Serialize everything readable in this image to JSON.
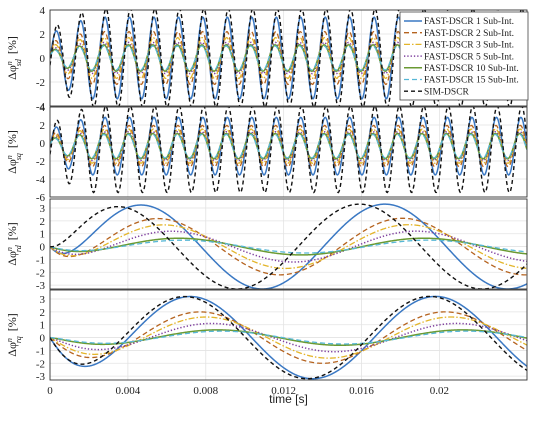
{
  "chart_data": {
    "type": "line",
    "xlabel": "time [s]",
    "x_range": [
      0,
      0.0245
    ],
    "x_ticks": [
      0,
      0.004,
      0.008,
      0.012,
      0.016,
      0.02
    ],
    "x_tick_labels": [
      "0",
      "0.004",
      "0.008",
      "0.012",
      "0.016",
      "0.02"
    ],
    "grid": true,
    "legend": {
      "placement": "top-right",
      "entries": [
        "FAST-DSCR 1 Sub-Int.",
        "FAST-DSCR 2 Sub-Int.",
        "FAST-DSCR 3 Sub-Int.",
        "FAST-DSCR 5 Sub-Int.",
        "FAST-DSCR 10 Sub-Int.",
        "FAST-DSCR 15 Sub-Int.",
        "SIM-DSCR"
      ]
    },
    "series_styles": [
      {
        "name": "FAST-DSCR 1 Sub-Int.",
        "color": "#3a78c3",
        "dash": "",
        "width": 1.5
      },
      {
        "name": "FAST-DSCR 2 Sub-Int.",
        "color": "#b5631f",
        "dash": "5,3",
        "width": 1.3
      },
      {
        "name": "FAST-DSCR 3 Sub-Int.",
        "color": "#e3b52a",
        "dash": "6,2,1.5,2",
        "width": 1.3
      },
      {
        "name": "FAST-DSCR 5 Sub-Int.",
        "color": "#7e3f9e",
        "dash": "1.3,2",
        "width": 1.5
      },
      {
        "name": "FAST-DSCR 10 Sub-Int.",
        "color": "#6a9a33",
        "dash": "",
        "width": 1.5
      },
      {
        "name": "FAST-DSCR 15 Sub-Int.",
        "color": "#57b7d6",
        "dash": "5,3",
        "width": 1.3
      },
      {
        "name": "SIM-DSCR",
        "color": "#111111",
        "dash": "4,3",
        "width": 1.4
      }
    ],
    "panels": [
      {
        "ylabel_main": "Δφ",
        "ylabel_sup": "n",
        "ylabel_sub": "sd",
        "ylabel_unit": "[%]",
        "ylim": [
          -4,
          4
        ],
        "yticks": [
          -4,
          -2,
          0,
          2,
          4
        ],
        "waveform": "fast",
        "cycles": 19.5,
        "amplitudes": [
          3.4,
          2.2,
          1.7,
          1.3,
          1.1,
          1.0,
          4.1
        ],
        "phase_shifts": [
          0,
          0.12,
          0.18,
          0.24,
          0.28,
          0.3,
          -0.25
        ]
      },
      {
        "ylabel_main": "Δφ",
        "ylabel_sup": "n",
        "ylabel_sub": "sq",
        "ylabel_unit": "[%]",
        "ylim": [
          -6,
          4
        ],
        "yticks": [
          -6,
          -4,
          -2,
          0,
          2,
          4
        ],
        "waveform": "fast",
        "cycles": 19.5,
        "offset": -0.7,
        "amplitudes": [
          3.2,
          2.3,
          1.9,
          1.6,
          1.4,
          1.3,
          4.8
        ],
        "phase_shifts": [
          0,
          0.12,
          0.18,
          0.24,
          0.28,
          0.3,
          -0.2
        ]
      },
      {
        "ylabel_main": "Δφ",
        "ylabel_sup": "n",
        "ylabel_sub": "rd",
        "ylabel_unit": "[%]",
        "ylim": [
          -3.3,
          3.7
        ],
        "yticks": [
          -3,
          -2,
          -1,
          0,
          1,
          2,
          3
        ],
        "waveform": "slow",
        "period": 0.0126,
        "peaks": [
          3.3,
          2.2,
          1.7,
          1.2,
          0.65,
          0.5,
          3.3
        ],
        "peak_times": [
          0.0046,
          0.0055,
          0.0058,
          0.0062,
          0.0066,
          0.0068,
          0.0033
        ]
      },
      {
        "ylabel_main": "Δφ",
        "ylabel_sup": "n",
        "ylabel_sub": "rq",
        "ylabel_unit": "[%]",
        "ylim": [
          -3.3,
          3.7
        ],
        "yticks": [
          -3,
          -2,
          -1,
          0,
          1,
          2,
          3
        ],
        "waveform": "slow",
        "period": 0.0126,
        "peaks": [
          3.2,
          2.0,
          1.6,
          1.1,
          0.6,
          0.5,
          3.2
        ],
        "peak_times": [
          0.0072,
          0.0077,
          0.008,
          0.0083,
          0.0086,
          0.0088,
          0.0069
        ]
      }
    ]
  }
}
